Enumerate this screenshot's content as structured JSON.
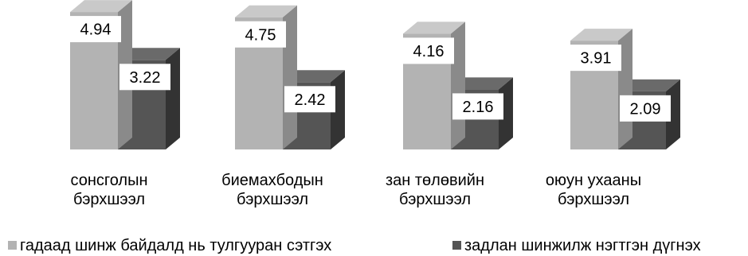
{
  "chart_data": {
    "type": "bar",
    "categories": [
      [
        "сонсголын",
        "бэрхшээл"
      ],
      [
        "биемахбодын",
        "бэрхшээл"
      ],
      [
        "зан төлөвийн",
        "бэрхшээл"
      ],
      [
        "оюун ухааны",
        "бэрхшээл"
      ]
    ],
    "series": [
      {
        "name": "гадаад шинж байдалд нь тулгууран сэтгэх",
        "values": [
          4.94,
          4.75,
          4.16,
          3.91
        ],
        "color": "#b3b3b3"
      },
      {
        "name": "задлан шинжилж нэгтгэн дүгнэх",
        "values": [
          3.22,
          2.42,
          2.16,
          2.09
        ],
        "color": "#555555"
      }
    ],
    "value_labels": [
      [
        "4.94",
        "4.75",
        "4.16",
        "3.91"
      ],
      [
        "3.22",
        "2.42",
        "2.16",
        "2.09"
      ]
    ],
    "style": "3d-column",
    "legend_position": "bottom",
    "grid": false,
    "ylim": [
      0,
      6
    ]
  }
}
